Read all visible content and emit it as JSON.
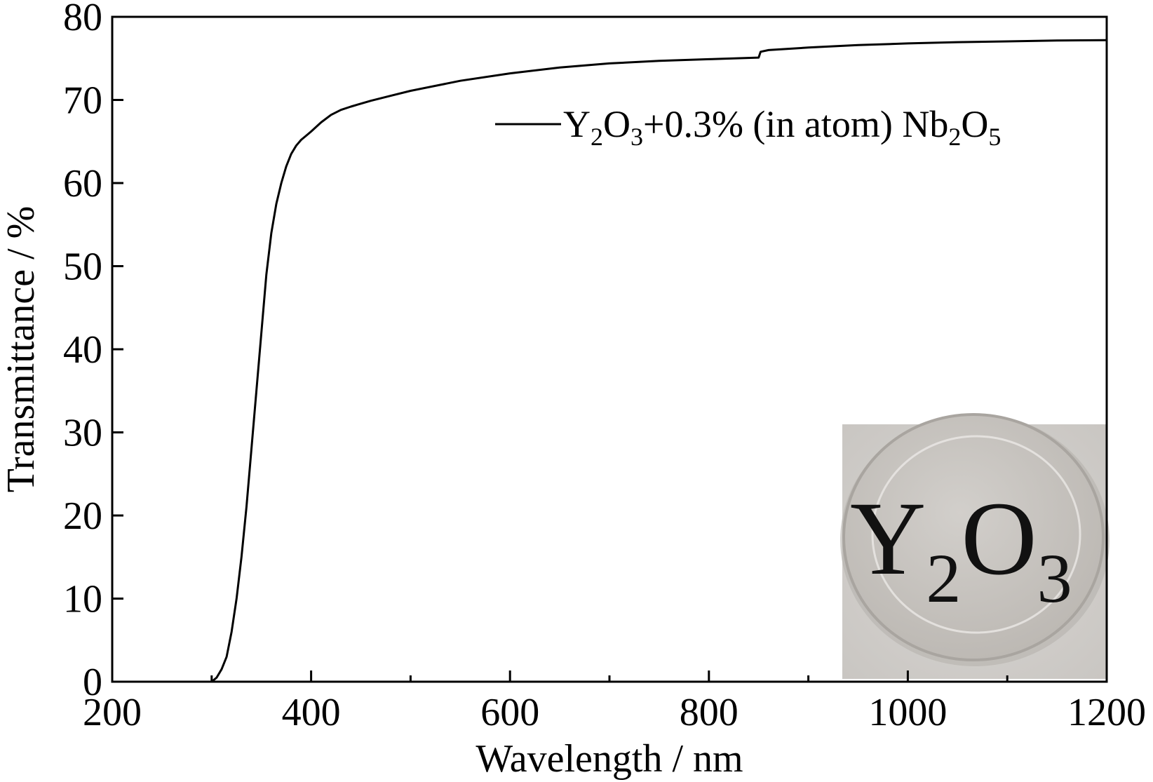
{
  "chart_data": {
    "type": "line",
    "title": "",
    "xlabel": "Wavelength / nm",
    "ylabel": "Transmittance / %",
    "xlim": [
      200,
      1200
    ],
    "ylim": [
      0,
      80
    ],
    "x_ticks": [
      200,
      400,
      600,
      800,
      1000,
      1200
    ],
    "y_ticks": [
      0,
      10,
      20,
      30,
      40,
      50,
      60,
      70,
      80
    ],
    "legend_position": "top-right",
    "grid": false,
    "series": [
      {
        "legend": {
          "y_sym": "Y",
          "y_sub": "2",
          "o_sym": "O",
          "o_sub": "3",
          "middle": "+0.3% (in atom) ",
          "nb_sym": "Nb",
          "nb_sub": "2",
          "o2_sym": "O",
          "o2_sub": "5"
        },
        "color": "#000000",
        "x": [
          300,
          305,
          310,
          315,
          320,
          325,
          330,
          335,
          340,
          345,
          350,
          355,
          360,
          365,
          370,
          375,
          380,
          385,
          390,
          395,
          400,
          410,
          420,
          430,
          440,
          460,
          480,
          500,
          550,
          600,
          650,
          700,
          750,
          800,
          850,
          852,
          860,
          900,
          950,
          1000,
          1050,
          1100,
          1150,
          1200
        ],
        "y": [
          0,
          0.5,
          1.5,
          3,
          6,
          10,
          15,
          21,
          28,
          35,
          42,
          49,
          54,
          57.5,
          60,
          62,
          63.5,
          64.5,
          65.2,
          65.7,
          66.2,
          67.3,
          68.2,
          68.8,
          69.2,
          69.9,
          70.5,
          71.1,
          72.3,
          73.2,
          73.9,
          74.4,
          74.7,
          74.9,
          75.1,
          75.8,
          76.0,
          76.3,
          76.6,
          76.8,
          76.95,
          77.05,
          77.15,
          77.2
        ]
      }
    ]
  },
  "inset": {
    "y_sym": "Y",
    "sub_2": "2",
    "o_sym": "O",
    "sub_3": "3"
  }
}
